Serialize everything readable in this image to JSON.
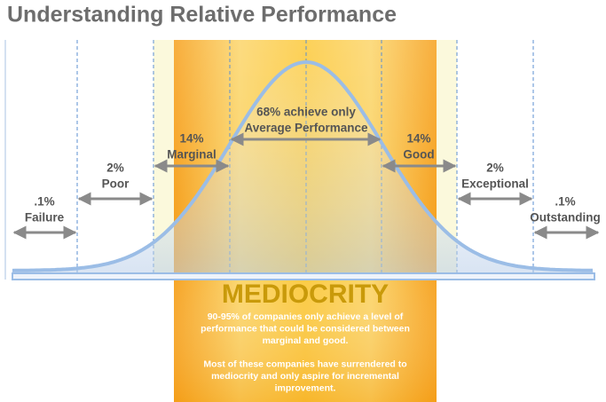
{
  "title": "Understanding Relative Performance",
  "segments": [
    {
      "percent": ".1%",
      "label": "Failure"
    },
    {
      "percent": "2%",
      "label": "Poor"
    },
    {
      "percent": "14%",
      "label": "Marginal"
    },
    {
      "percent": "68% achieve only",
      "label": "Average Performance"
    },
    {
      "percent": "14%",
      "label": "Good"
    },
    {
      "percent": "2%",
      "label": "Exceptional"
    },
    {
      "percent": ".1%",
      "label": "Outstanding"
    }
  ],
  "callout": {
    "heading": "MEDIOCRITY",
    "paragraphs": [
      [
        "90-95% of companies only achieve a level of",
        "performance that could be considered between",
        "marginal and good."
      ],
      [
        "Most of these companies have surrendered to",
        "mediocrity and only aspire for incremental",
        "improvement."
      ]
    ]
  }
}
